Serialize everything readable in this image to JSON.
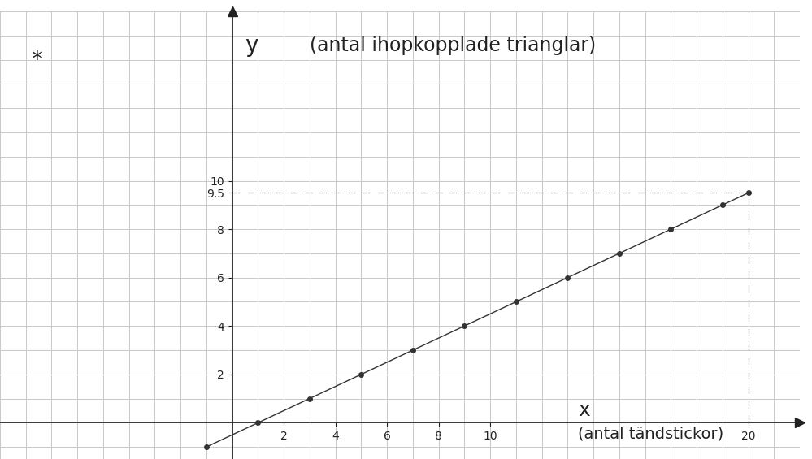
{
  "chart_data": {
    "type": "line",
    "x_label": "x",
    "y_label": "y",
    "annotations": [
      "(antal ihopkopplade trianglar)",
      "(antal tändstickor)",
      "*"
    ],
    "x": [
      -1,
      1,
      3,
      5,
      7,
      9,
      11,
      13,
      15,
      17,
      19,
      20
    ],
    "values": [
      -1,
      0,
      1,
      2,
      3,
      4,
      5,
      6,
      7,
      8,
      9,
      9.5
    ],
    "color": "#333333",
    "marker": "o",
    "line_style": "solid",
    "xlim": [
      -9,
      22
    ],
    "ylim": [
      -1.5,
      17
    ],
    "xticks": [
      2,
      4,
      6,
      8,
      10,
      20
    ],
    "yticks": [
      2,
      4,
      6,
      8,
      9.5,
      10
    ],
    "grid": true
  }
}
